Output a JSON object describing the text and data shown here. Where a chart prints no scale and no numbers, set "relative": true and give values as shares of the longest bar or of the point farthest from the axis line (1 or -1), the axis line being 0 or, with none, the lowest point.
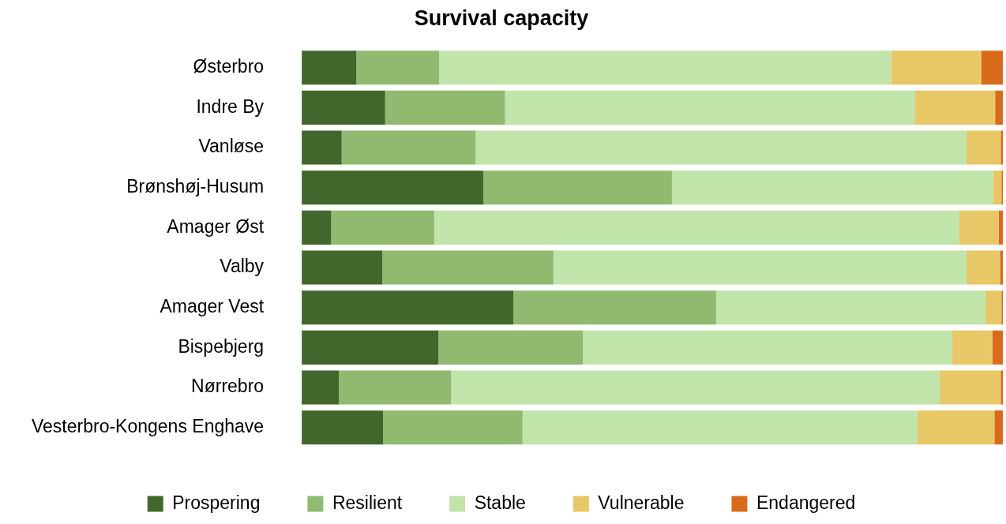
{
  "chart_data": {
    "type": "bar",
    "title": "Survival capacity",
    "orientation": "horizontal",
    "stacked": true,
    "relative": true,
    "legend": "bottom",
    "categories": [
      "Østerbro",
      "Indre By",
      "Vanløse",
      "Brønshøj-Husum",
      "Amager Øst",
      "Valby",
      "Amager Vest",
      "Bispebjerg",
      "Nørrebro",
      "Vesterbro-Kongens Enghave"
    ],
    "series": [
      {
        "name": "Prospering",
        "color": "#41672c",
        "values": [
          0.078,
          0.119,
          0.057,
          0.259,
          0.042,
          0.115,
          0.302,
          0.195,
          0.053,
          0.116
        ]
      },
      {
        "name": "Resilient",
        "color": "#90ba6f",
        "values": [
          0.118,
          0.171,
          0.191,
          0.269,
          0.147,
          0.244,
          0.289,
          0.206,
          0.16,
          0.199
        ]
      },
      {
        "name": "Stable",
        "color": "#c1e4ab",
        "values": [
          0.645,
          0.585,
          0.7,
          0.458,
          0.749,
          0.589,
          0.384,
          0.527,
          0.697,
          0.563
        ]
      },
      {
        "name": "Vulnerable",
        "color": "#e8c766",
        "values": [
          0.128,
          0.114,
          0.049,
          0.012,
          0.056,
          0.048,
          0.023,
          0.057,
          0.087,
          0.11
        ]
      },
      {
        "name": "Endangered",
        "color": "#d86a1c",
        "values": [
          0.031,
          0.011,
          0.003,
          0.002,
          0.006,
          0.004,
          0.002,
          0.015,
          0.003,
          0.012
        ]
      }
    ]
  }
}
